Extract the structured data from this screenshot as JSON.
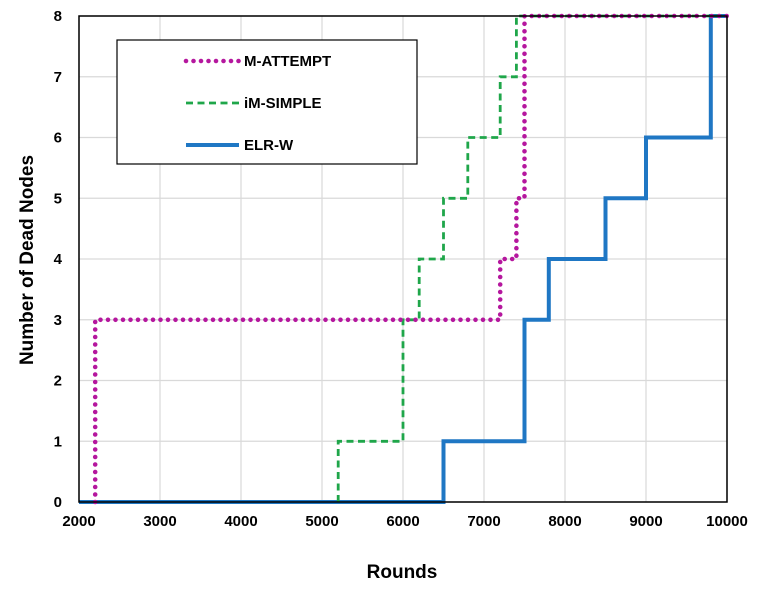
{
  "chart_data": {
    "type": "line",
    "step": true,
    "title": "",
    "xlabel": "Rounds",
    "ylabel": "Number of Dead Nodes",
    "xlim": [
      2000,
      10000
    ],
    "ylim": [
      0,
      8
    ],
    "xticks": [
      2000,
      3000,
      4000,
      5000,
      6000,
      7000,
      8000,
      9000,
      10000
    ],
    "yticks": [
      0,
      1,
      2,
      3,
      4,
      5,
      6,
      7,
      8
    ],
    "grid": true,
    "legend_position": "top-left",
    "series": [
      {
        "name": "M-ATTEMPT",
        "color": "#B5179E",
        "line_style": "dotted",
        "points": [
          [
            2200,
            0
          ],
          [
            2200,
            3
          ],
          [
            7200,
            3
          ],
          [
            7200,
            4
          ],
          [
            7400,
            4
          ],
          [
            7400,
            5
          ],
          [
            7500,
            5
          ],
          [
            7500,
            8
          ],
          [
            10000,
            8
          ]
        ]
      },
      {
        "name": "iM-SIMPLE",
        "color": "#1FA64A",
        "line_style": "dashed",
        "points": [
          [
            5200,
            0
          ],
          [
            5200,
            1
          ],
          [
            6000,
            1
          ],
          [
            6000,
            3
          ],
          [
            6200,
            3
          ],
          [
            6200,
            4
          ],
          [
            6500,
            4
          ],
          [
            6500,
            5
          ],
          [
            6800,
            5
          ],
          [
            6800,
            6
          ],
          [
            7200,
            6
          ],
          [
            7200,
            7
          ],
          [
            7400,
            7
          ],
          [
            7400,
            8
          ],
          [
            10000,
            8
          ]
        ]
      },
      {
        "name": "ELR-W",
        "color": "#1F77C4",
        "line_style": "solid",
        "points": [
          [
            2000,
            0
          ],
          [
            6500,
            0
          ],
          [
            6500,
            1
          ],
          [
            7500,
            1
          ],
          [
            7500,
            3
          ],
          [
            7800,
            3
          ],
          [
            7800,
            4
          ],
          [
            8500,
            4
          ],
          [
            8500,
            5
          ],
          [
            9000,
            5
          ],
          [
            9000,
            6
          ],
          [
            9800,
            6
          ],
          [
            9800,
            8
          ],
          [
            10000,
            8
          ]
        ]
      }
    ]
  }
}
